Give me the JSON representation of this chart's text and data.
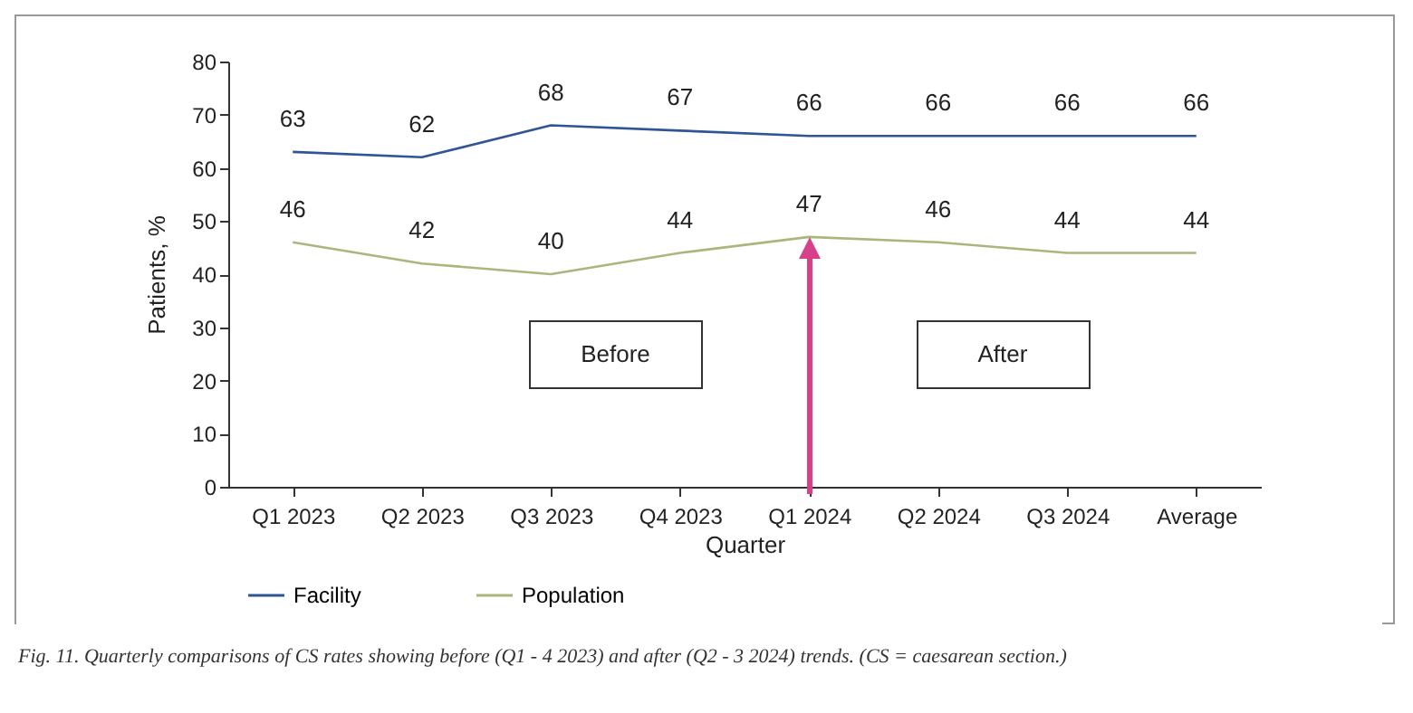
{
  "chart_data": {
    "type": "line",
    "xlabel": "Quarter",
    "ylabel": "Patients, %",
    "categories": [
      "Q1 2023",
      "Q2 2023",
      "Q3 2023",
      "Q4 2023",
      "Q1 2024",
      "Q2 2024",
      "Q3 2024",
      "Average"
    ],
    "series": [
      {
        "name": "Facility",
        "color": "#2f5597",
        "values": [
          63,
          62,
          68,
          67,
          66,
          66,
          66,
          66
        ]
      },
      {
        "name": "Population",
        "color": "#a9b77d",
        "values": [
          46,
          42,
          40,
          44,
          47,
          46,
          44,
          44
        ]
      }
    ],
    "ylim": [
      0,
      80
    ],
    "yticks": [
      0,
      10,
      20,
      30,
      40,
      50,
      60,
      70,
      80
    ],
    "grid": false,
    "legend": "bottom left",
    "marker": "none",
    "line_style": "solid",
    "data_labels": true,
    "annotations": [
      "Before",
      "After",
      "Fig. 11. Quarterly comparisons of CS rates showing before (Q1 - 4 2023) and after (Q2 - 3 2024) trends. (CS = caesarean section.)"
    ]
  }
}
